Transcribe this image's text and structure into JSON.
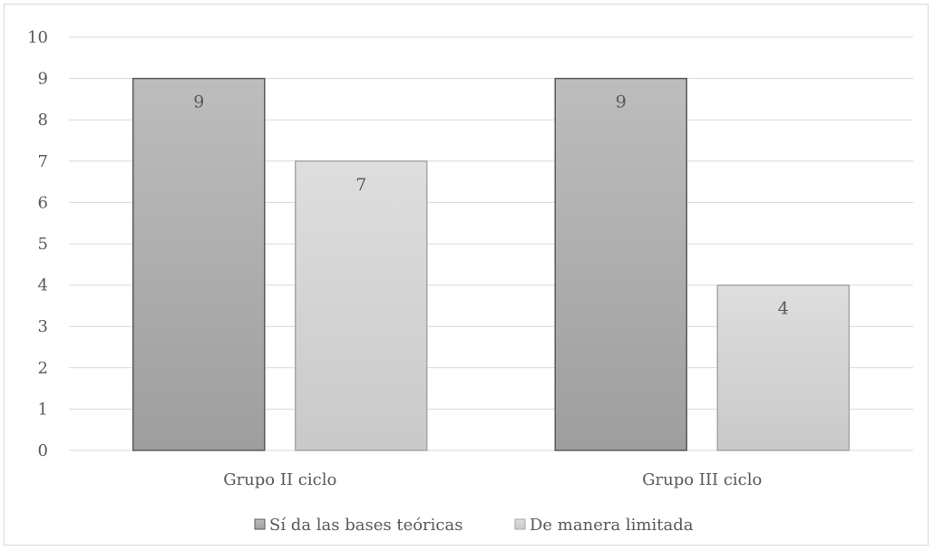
{
  "chart_data": {
    "type": "bar",
    "categories": [
      "Grupo II ciclo",
      "Grupo III ciclo"
    ],
    "series": [
      {
        "name": "Sí da las bases teóricas",
        "values": [
          9,
          9
        ],
        "color_top": "#bdbdbd",
        "color_bottom": "#9e9e9e",
        "stroke": "#5a5a5a"
      },
      {
        "name": "De manera limitada",
        "values": [
          7,
          4
        ],
        "color_top": "#dedede",
        "color_bottom": "#c9c9c9",
        "stroke": "#a6a6a6"
      }
    ],
    "ylim": [
      0,
      10
    ],
    "yticks": [
      0,
      1,
      2,
      3,
      4,
      5,
      6,
      7,
      8,
      9,
      10
    ],
    "grid": true,
    "legend_position": "bottom",
    "data_labels": true
  }
}
